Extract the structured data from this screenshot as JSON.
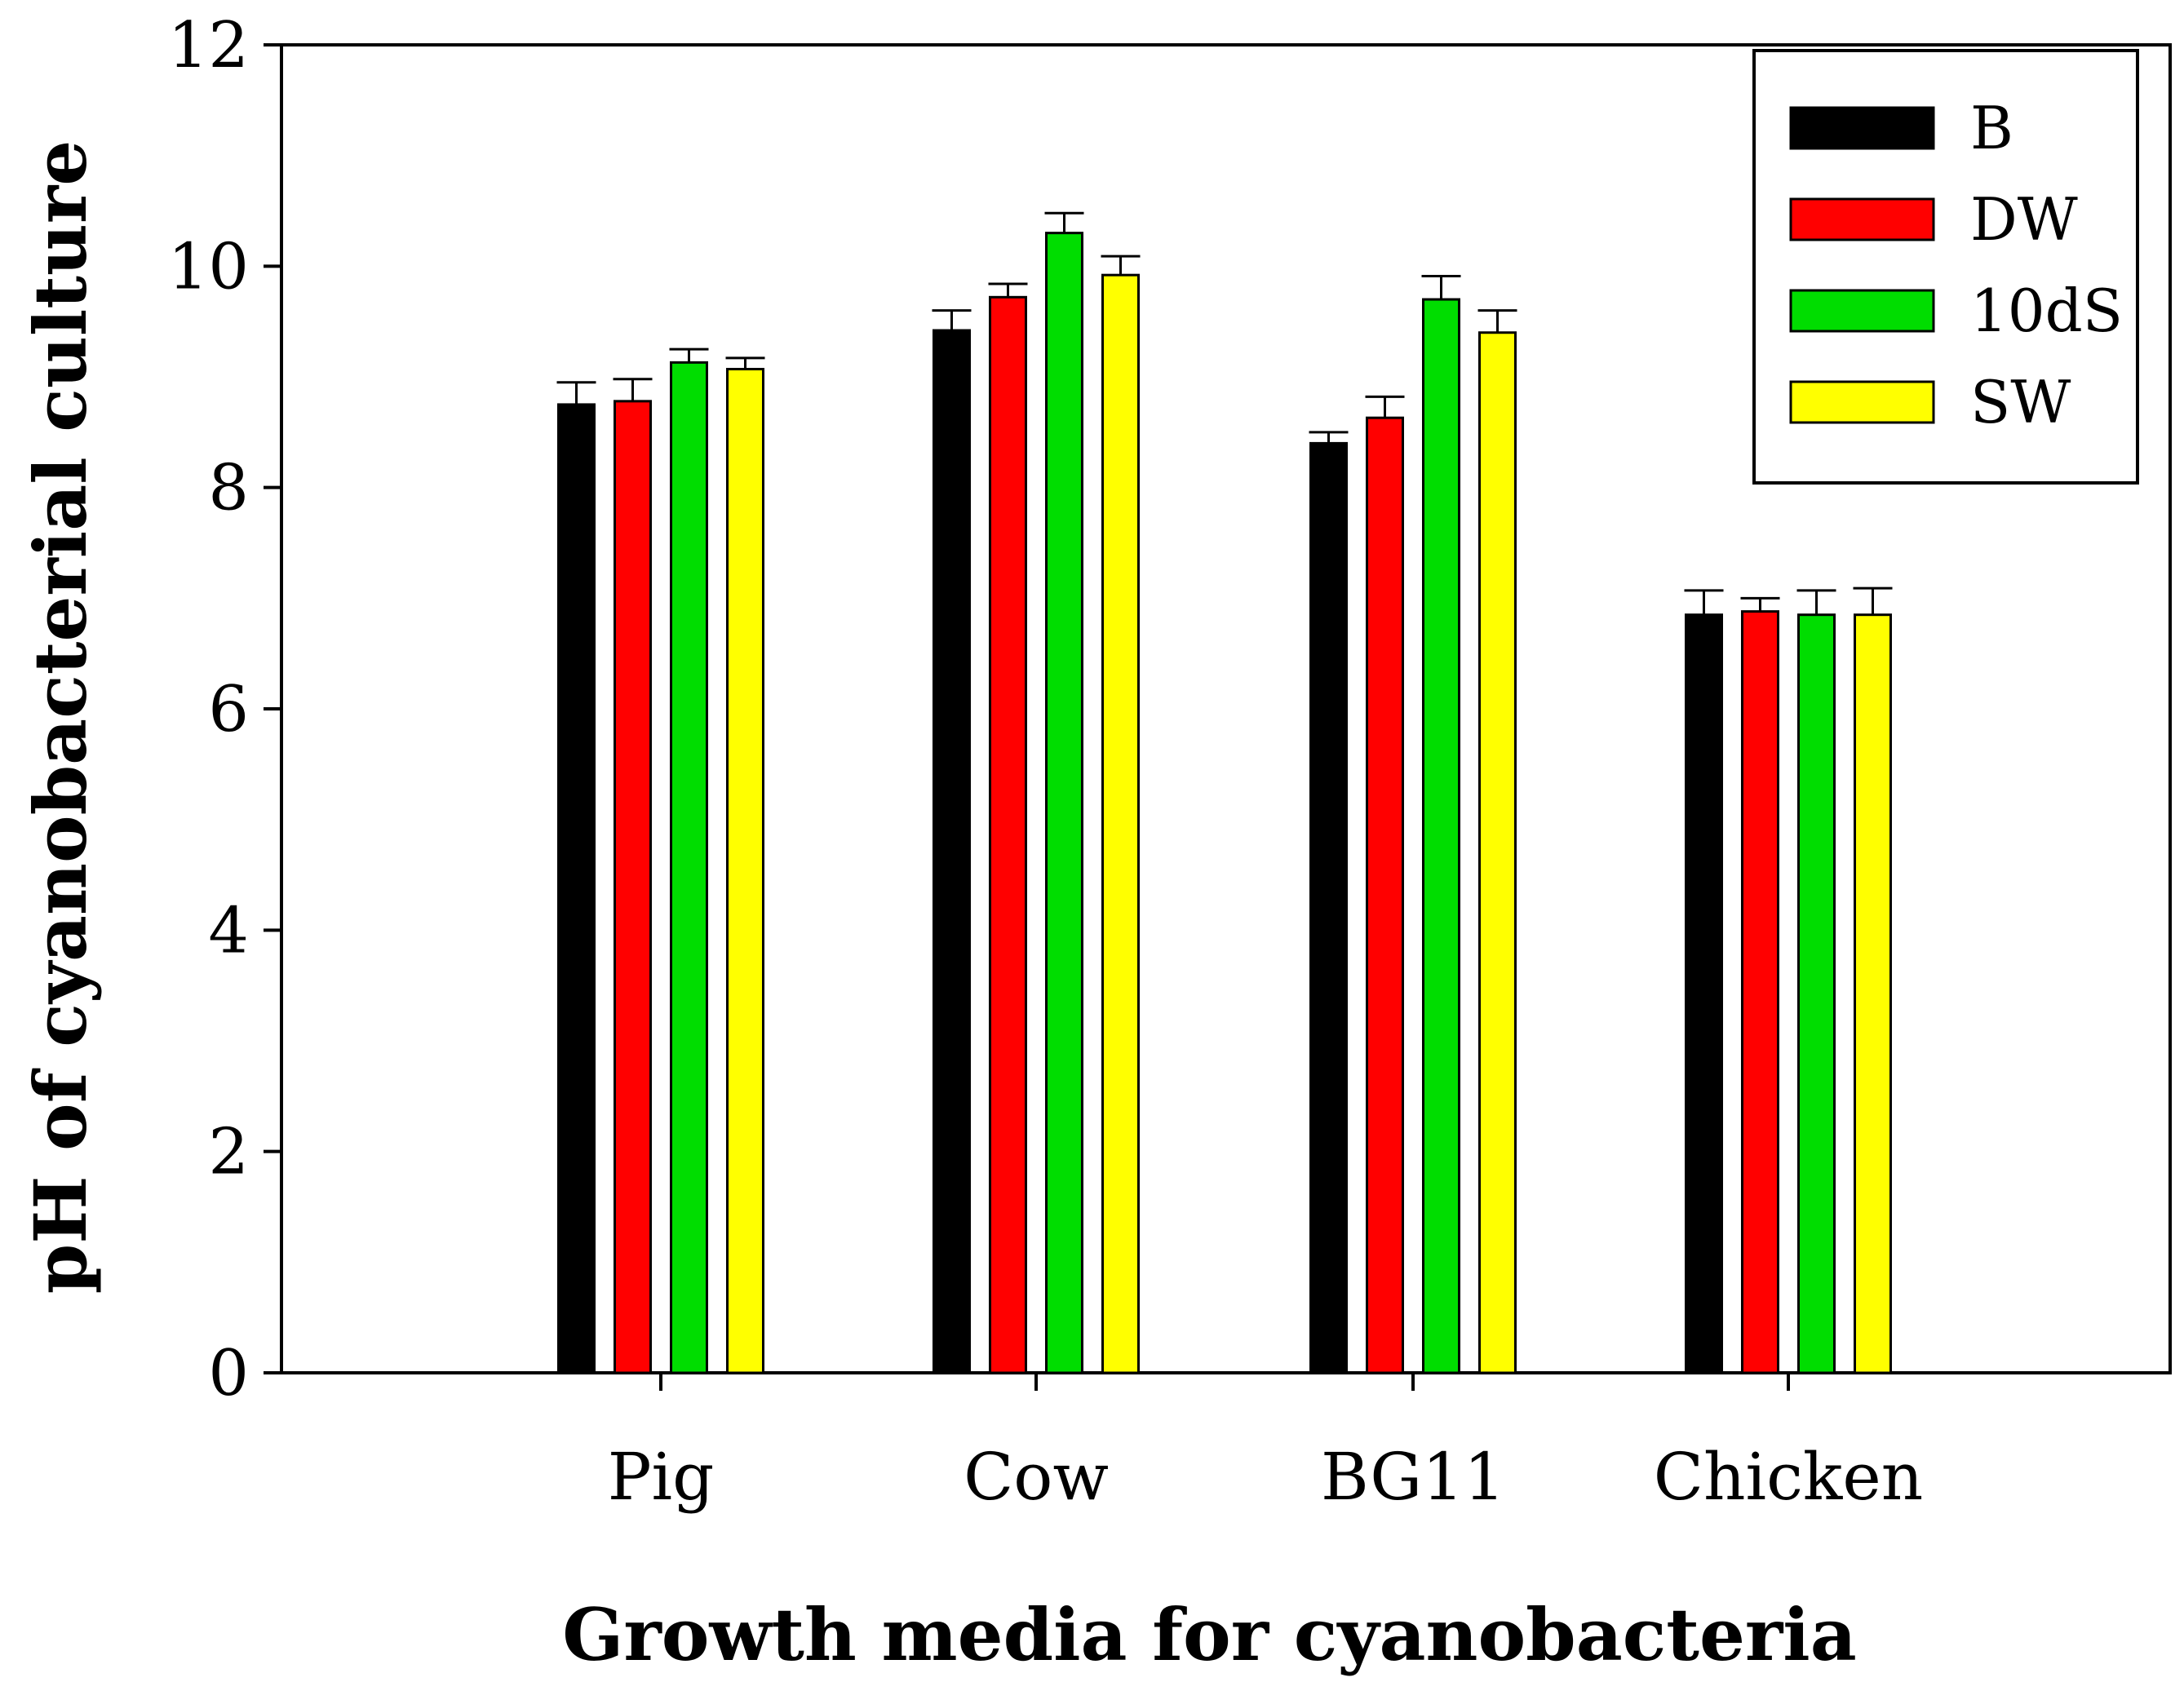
{
  "chart_data": {
    "type": "bar",
    "title": "",
    "xlabel": "Growth media for cyanobacteria",
    "ylabel": "pH of cyanobacterial culture",
    "ylim": [
      0,
      12
    ],
    "yticks": [
      0,
      2,
      4,
      6,
      8,
      10,
      12
    ],
    "ytick_labels": [
      "0",
      "2",
      "4",
      "6",
      "8",
      "10",
      "12"
    ],
    "grid": false,
    "legend_position": "top-right",
    "categories": [
      "Pig",
      "Cow",
      "BG11",
      "Chicken"
    ],
    "series": [
      {
        "name": "B",
        "color": "#000000",
        "values": [
          8.75,
          9.42,
          8.4,
          6.85
        ],
        "errors": [
          0.2,
          0.18,
          0.1,
          0.22
        ]
      },
      {
        "name": "DW",
        "color": "#ff0000",
        "values": [
          8.78,
          9.72,
          8.63,
          6.88
        ],
        "errors": [
          0.2,
          0.12,
          0.19,
          0.12
        ]
      },
      {
        "name": "10dS",
        "color": "#00dd00",
        "values": [
          9.13,
          10.3,
          9.7,
          6.85
        ],
        "errors": [
          0.12,
          0.18,
          0.21,
          0.22
        ]
      },
      {
        "name": "SW",
        "color": "#ffff00",
        "values": [
          9.07,
          9.92,
          9.4,
          6.85
        ],
        "errors": [
          0.1,
          0.17,
          0.2,
          0.24
        ]
      }
    ]
  }
}
